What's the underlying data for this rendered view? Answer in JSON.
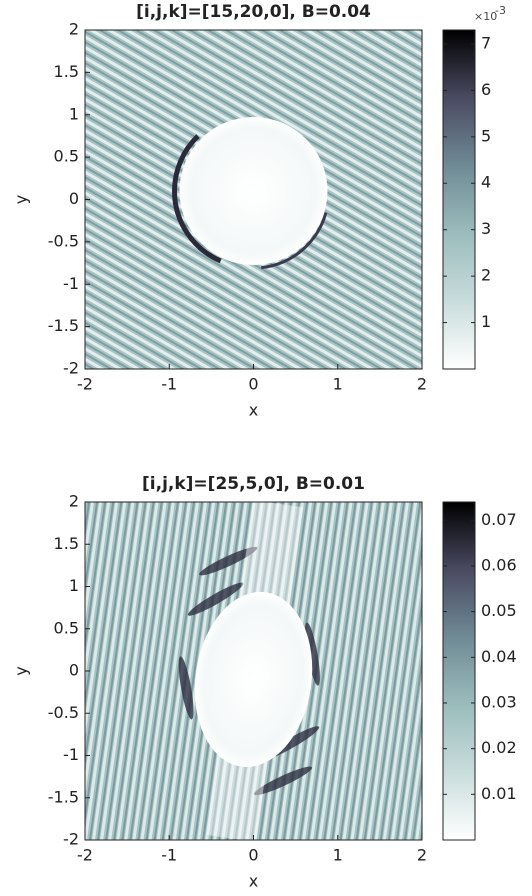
{
  "chart_data": [
    {
      "type": "heatmap",
      "title": "[i,j,k]=[15,20,0], B=0.04",
      "xlabel": "x",
      "ylabel": "y",
      "xlim": [
        -2,
        2
      ],
      "xticks": [
        -2,
        -1,
        0,
        1,
        2
      ],
      "ylim": [
        -2,
        2
      ],
      "yticks": [
        -2,
        -1.5,
        -1,
        -0.5,
        0,
        0.5,
        1,
        1.5,
        2
      ],
      "colormap": [
        "#ffffff",
        "#c9dcdc",
        "#9bbcbc",
        "#6f8a95",
        "#4a4a62",
        "#000000"
      ],
      "clim": [
        0,
        0.0073
      ],
      "cticks": [
        {
          "value": 0.001,
          "label": "1"
        },
        {
          "value": 0.002,
          "label": "2"
        },
        {
          "value": 0.003,
          "label": "3"
        },
        {
          "value": 0.004,
          "label": "4"
        },
        {
          "value": 0.005,
          "label": "5"
        },
        {
          "value": 0.006,
          "label": "6"
        },
        {
          "value": 0.007,
          "label": "7"
        }
      ],
      "colorbar_multiplier": "×10",
      "colorbar_exponent": "-3"
    },
    {
      "type": "heatmap",
      "title": "[i,j,k]=[25,5,0], B=0.01",
      "xlabel": "x",
      "ylabel": "y",
      "xlim": [
        -2,
        2
      ],
      "xticks": [
        -2,
        -1,
        0,
        1,
        2
      ],
      "ylim": [
        -2,
        2
      ],
      "yticks": [
        -2,
        -1.5,
        -1,
        -0.5,
        0,
        0.5,
        1,
        1.5,
        2
      ],
      "colormap": [
        "#ffffff",
        "#c9dcdc",
        "#9bbcbc",
        "#6f8a95",
        "#4a4a62",
        "#000000"
      ],
      "clim": [
        0,
        0.074
      ],
      "cticks": [
        0.01,
        0.02,
        0.03,
        0.04,
        0.05,
        0.06,
        0.07
      ]
    }
  ]
}
